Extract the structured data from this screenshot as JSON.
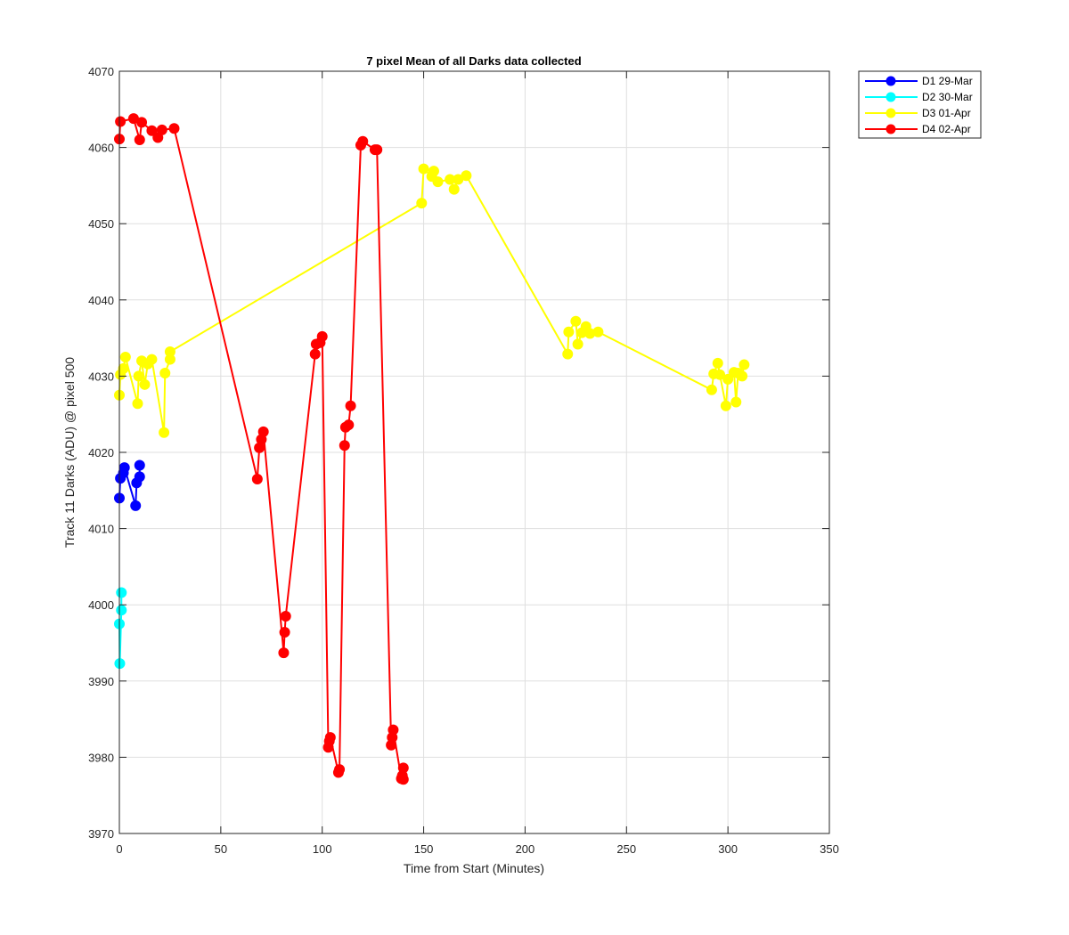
{
  "chart_data": {
    "type": "line",
    "title": "7 pixel Mean of all Darks data collected",
    "xlabel": "Time from Start (Minutes)",
    "ylabel": "Track 11 Darks (ADU) @ pixel 500",
    "xlim": [
      0,
      350
    ],
    "ylim": [
      3970,
      4070
    ],
    "xticks": [
      0,
      50,
      100,
      150,
      200,
      250,
      300,
      350
    ],
    "yticks": [
      3970,
      3980,
      3990,
      4000,
      4010,
      4020,
      4030,
      4040,
      4050,
      4060,
      4070
    ],
    "grid": true,
    "legend_position": "outside-top-right",
    "series": [
      {
        "name": "D1 29-Mar",
        "color": "#0000ff",
        "points": [
          [
            0,
            4014
          ],
          [
            0.5,
            4016.6
          ],
          [
            2,
            4017.3
          ],
          [
            2.5,
            4018
          ],
          [
            8,
            4013
          ],
          [
            8.5,
            4016
          ],
          [
            10,
            4016.8
          ],
          [
            10,
            4018.3
          ]
        ]
      },
      {
        "name": "D2 30-Mar",
        "color": "#00ffff",
        "points": [
          [
            0,
            3997.5
          ],
          [
            0.2,
            3992.3
          ],
          [
            1,
            3999.3
          ],
          [
            1,
            4001.6
          ]
        ]
      },
      {
        "name": "D3 01-Apr",
        "color": "#ffff00",
        "points": [
          [
            0,
            4027.5
          ],
          [
            0.5,
            4030.2
          ],
          [
            2,
            4031
          ],
          [
            3,
            4032.5
          ],
          [
            9,
            4026.4
          ],
          [
            9.5,
            4030
          ],
          [
            11,
            4032
          ],
          [
            12.5,
            4028.9
          ],
          [
            14,
            4031.6
          ],
          [
            16,
            4032.2
          ],
          [
            22,
            4022.6
          ],
          [
            22.5,
            4030.4
          ],
          [
            25,
            4032.2
          ],
          [
            25,
            4033.2
          ],
          [
            149,
            4052.7
          ],
          [
            150,
            4057.2
          ],
          [
            154,
            4056.2
          ],
          [
            155,
            4056.9
          ],
          [
            157,
            4055.5
          ],
          [
            163,
            4055.8
          ],
          [
            165,
            4054.5
          ],
          [
            167,
            4055.8
          ],
          [
            171,
            4056.3
          ],
          [
            221,
            4032.9
          ],
          [
            221.5,
            4035.8
          ],
          [
            225,
            4037.2
          ],
          [
            226,
            4034.2
          ],
          [
            228,
            4035.7
          ],
          [
            230,
            4036.5
          ],
          [
            232,
            4035.6
          ],
          [
            236,
            4035.8
          ],
          [
            292,
            4028.2
          ],
          [
            293,
            4030.3
          ],
          [
            295,
            4031.7
          ],
          [
            296,
            4030.2
          ],
          [
            299,
            4026.1
          ],
          [
            300,
            4029.6
          ],
          [
            303,
            4030.5
          ],
          [
            304,
            4026.6
          ],
          [
            305,
            4030.4
          ],
          [
            307,
            4030
          ],
          [
            308,
            4031.5
          ]
        ]
      },
      {
        "name": "D4 02-Apr",
        "color": "#ff0000",
        "points": [
          [
            0,
            4061.1
          ],
          [
            0.5,
            4063.4
          ],
          [
            7,
            4063.8
          ],
          [
            10,
            4061
          ],
          [
            11,
            4063.3
          ],
          [
            16,
            4062.2
          ],
          [
            19,
            4061.3
          ],
          [
            21,
            4062.3
          ],
          [
            27,
            4062.5
          ],
          [
            68,
            4016.5
          ],
          [
            69,
            4020.6
          ],
          [
            70,
            4021.7
          ],
          [
            71,
            4022.7
          ],
          [
            81,
            3993.7
          ],
          [
            81.5,
            3996.4
          ],
          [
            82,
            3998.5
          ],
          [
            96.5,
            4032.9
          ],
          [
            97,
            4034.2
          ],
          [
            99,
            4034.4
          ],
          [
            100,
            4035.2
          ],
          [
            103,
            3981.3
          ],
          [
            103.5,
            3982.1
          ],
          [
            104,
            3982.6
          ],
          [
            108,
            3978
          ],
          [
            108.5,
            3978.4
          ],
          [
            111,
            4020.9
          ],
          [
            111.5,
            4023.3
          ],
          [
            113,
            4023.6
          ],
          [
            114,
            4026.1
          ],
          [
            119,
            4060.3
          ],
          [
            120,
            4060.8
          ],
          [
            126,
            4059.7
          ],
          [
            127,
            4059.7
          ],
          [
            134,
            3981.6
          ],
          [
            134.5,
            3982.6
          ],
          [
            135,
            3983.6
          ],
          [
            139,
            3977.2
          ],
          [
            139.5,
            3977.6
          ],
          [
            140,
            3978.6
          ],
          [
            140,
            3977.1
          ]
        ]
      }
    ]
  }
}
